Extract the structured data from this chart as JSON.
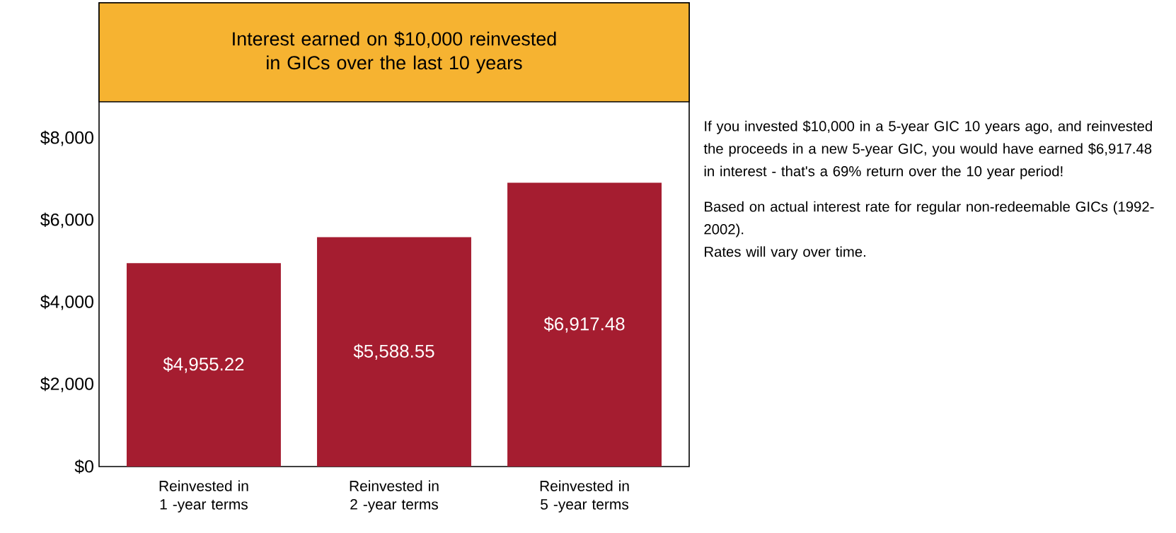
{
  "chart_data": {
    "type": "bar",
    "title": "Interest earned on $10,000 reinvested in GICs over the last 10 years",
    "categories": [
      "Reinvested in 1 -year terms",
      "Reinvested in 2 -year terms",
      "Reinvested in 5 -year terms"
    ],
    "values": [
      4955.22,
      5588.55,
      6917.48
    ],
    "value_labels": [
      "$4,955.22",
      "$5,588.55",
      "$6,917.48"
    ],
    "color": "#a51d30",
    "ylim": [
      0,
      11300
    ],
    "yticks": [
      {
        "value": 0,
        "label": "$0"
      },
      {
        "value": 2000,
        "label": "$2,000"
      },
      {
        "value": 4000,
        "label": "$4,000"
      },
      {
        "value": 6000,
        "label": "$6,000"
      },
      {
        "value": 8000,
        "label": "$8,000"
      }
    ],
    "annotations": [
      "If you invested $10,000 in a 5-year GIC 10 years ago, and reinvested the proceeds in a new 5-year GIC, you would have earned $6,917.48 in interest - that's a 69% return over the 10 year period!",
      "Based on actual interest rate for regular non-redeemable GICs (1992-2002).",
      "Rates will vary over time."
    ]
  }
}
